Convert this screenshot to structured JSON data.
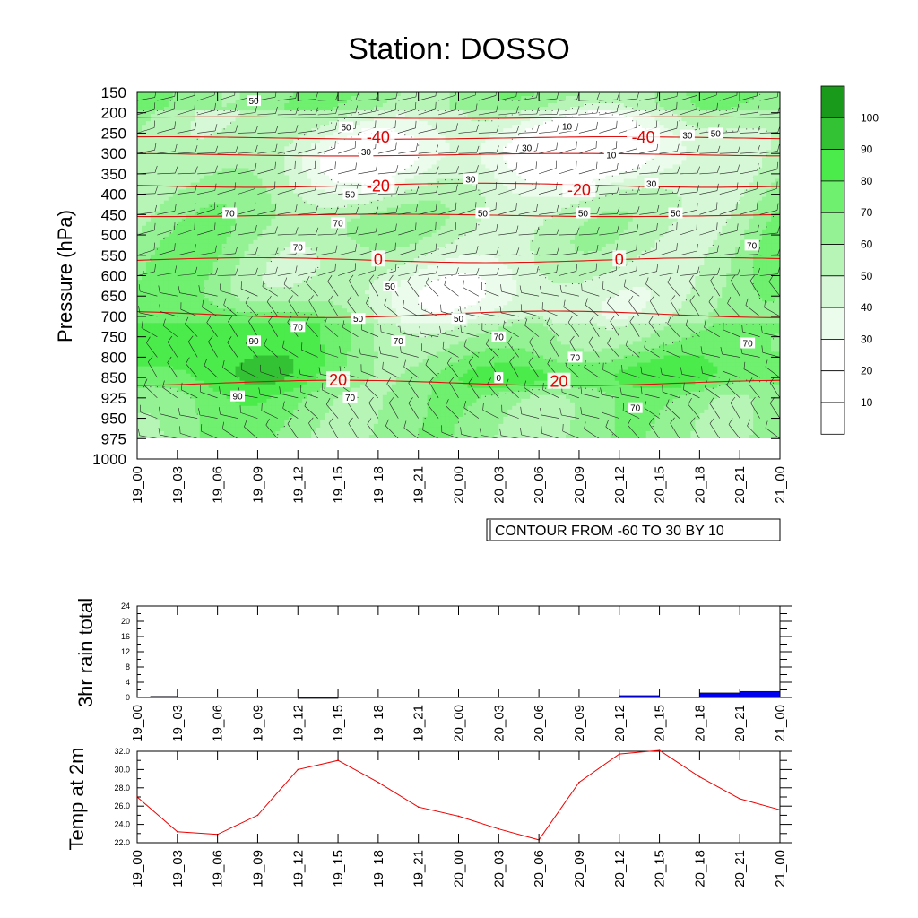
{
  "title": "Station: DOSSO",
  "chart_data": [
    {
      "type": "heatmap",
      "name": "relative-humidity-cross-section",
      "ylabel": "Pressure (hPa)",
      "y_ticks": [
        "150",
        "200",
        "250",
        "300",
        "350",
        "400",
        "450",
        "500",
        "550",
        "600",
        "650",
        "700",
        "750",
        "800",
        "850",
        "925",
        "950",
        "975",
        "1000"
      ],
      "x_ticks": [
        "19_00",
        "19_03",
        "19_06",
        "19_09",
        "19_12",
        "19_15",
        "19_18",
        "19_21",
        "20_00",
        "20_03",
        "20_06",
        "20_09",
        "20_12",
        "20_15",
        "20_18",
        "20_21",
        "21_00"
      ],
      "colorbar": {
        "levels": [
          "100",
          "90",
          "80",
          "70",
          "60",
          "50",
          "40",
          "30",
          "20",
          "10"
        ],
        "colors": [
          "#1a9a1a",
          "#33c233",
          "#4aeb4a",
          "#6ff06f",
          "#94f294",
          "#b6f5b6",
          "#d6f8d6",
          "#ecfcec",
          "#ffffff",
          "#ffffff",
          "#ffffff"
        ]
      },
      "rh_contour_labels": [
        {
          "v": "50",
          "t": 2.9,
          "p": 170
        },
        {
          "v": "50",
          "t": 5.2,
          "p": 235
        },
        {
          "v": "10",
          "t": 10.7,
          "p": 232
        },
        {
          "v": "30",
          "t": 13.7,
          "p": 255
        },
        {
          "v": "50",
          "t": 14.4,
          "p": 250
        },
        {
          "v": "30",
          "t": 5.7,
          "p": 295
        },
        {
          "v": "30",
          "t": 9.7,
          "p": 285
        },
        {
          "v": "10",
          "t": 11.8,
          "p": 303
        },
        {
          "v": "30",
          "t": 8.3,
          "p": 362
        },
        {
          "v": "30",
          "t": 12.8,
          "p": 373
        },
        {
          "v": "50",
          "t": 5.3,
          "p": 400
        },
        {
          "v": "70",
          "t": 2.3,
          "p": 446
        },
        {
          "v": "70",
          "t": 5.0,
          "p": 470
        },
        {
          "v": "50",
          "t": 8.6,
          "p": 446
        },
        {
          "v": "50",
          "t": 11.1,
          "p": 446
        },
        {
          "v": "50",
          "t": 13.4,
          "p": 446
        },
        {
          "v": "70",
          "t": 4.0,
          "p": 530
        },
        {
          "v": "70",
          "t": 15.3,
          "p": 525
        },
        {
          "v": "50",
          "t": 6.3,
          "p": 625
        },
        {
          "v": "50",
          "t": 5.5,
          "p": 705
        },
        {
          "v": "50",
          "t": 8.0,
          "p": 705
        },
        {
          "v": "70",
          "t": 4.0,
          "p": 725
        },
        {
          "v": "90",
          "t": 2.9,
          "p": 760
        },
        {
          "v": "70",
          "t": 6.5,
          "p": 760
        },
        {
          "v": "70",
          "t": 9.0,
          "p": 750
        },
        {
          "v": "70",
          "t": 15.2,
          "p": 765
        },
        {
          "v": "70",
          "t": 10.9,
          "p": 800
        },
        {
          "v": "0",
          "t": 9.0,
          "p": 850
        },
        {
          "v": "90",
          "t": 2.5,
          "p": 918
        },
        {
          "v": "70",
          "t": 5.3,
          "p": 922
        },
        {
          "v": "70",
          "t": 12.4,
          "p": 937
        }
      ],
      "temperature_contour_labels": [
        {
          "v": "-40",
          "t": 6.0,
          "p": 260
        },
        {
          "v": "-40",
          "t": 12.6,
          "p": 260
        },
        {
          "v": "-20",
          "t": 6.0,
          "p": 380
        },
        {
          "v": "-20",
          "t": 11.0,
          "p": 390
        },
        {
          "v": "0",
          "t": 6.0,
          "p": 560
        },
        {
          "v": "0",
          "t": 12.0,
          "p": 560
        },
        {
          "v": "20",
          "t": 5.0,
          "p": 860
        },
        {
          "v": "20",
          "t": 10.5,
          "p": 865
        }
      ],
      "info_box": "CONTOUR FROM -60 TO 30 BY 10"
    },
    {
      "type": "bar",
      "name": "rain",
      "ylabel": "3hr rain total",
      "y_ticks": [
        "0",
        "4",
        "8",
        "12",
        "16",
        "20",
        "24"
      ],
      "ylim": [
        0,
        24
      ],
      "x_ticks": [
        "19_00",
        "19_03",
        "19_06",
        "19_09",
        "19_12",
        "19_15",
        "19_18",
        "19_21",
        "20_00",
        "20_03",
        "20_06",
        "20_09",
        "20_12",
        "20_15",
        "20_18",
        "20_21",
        "21_00"
      ],
      "bars": [
        {
          "start": "19_01",
          "end": "19_03",
          "value": 0.3
        },
        {
          "start": "19_12",
          "end": "19_15",
          "value": 0.1
        },
        {
          "start": "20_12",
          "end": "20_15",
          "value": 0.5
        },
        {
          "start": "20_18",
          "end": "20_21",
          "value": 1.2
        },
        {
          "start": "20_21",
          "end": "21_00",
          "value": 1.6
        }
      ],
      "bar_color": "#0000ee"
    },
    {
      "type": "line",
      "name": "temp",
      "ylabel": "Temp at 2m",
      "y_ticks": [
        "22.0",
        "24.0",
        "26.0",
        "28.0",
        "30.0",
        "32.0"
      ],
      "ylim": [
        22,
        32
      ],
      "x_ticks": [
        "19_00",
        "19_03",
        "19_06",
        "19_09",
        "19_12",
        "19_15",
        "19_18",
        "19_21",
        "20_00",
        "20_03",
        "20_06",
        "20_09",
        "20_12",
        "20_15",
        "20_18",
        "20_21",
        "21_00"
      ],
      "x": [
        "19_00",
        "19_03",
        "19_06",
        "19_09",
        "19_12",
        "19_15",
        "19_18",
        "19_21",
        "20_00",
        "20_03",
        "20_06",
        "20_09",
        "20_12",
        "20_15",
        "20_18",
        "20_21",
        "21_00"
      ],
      "values": [
        27.0,
        23.2,
        22.9,
        25.0,
        30.0,
        31.0,
        28.6,
        25.9,
        24.9,
        23.5,
        22.3,
        28.6,
        31.7,
        32.1,
        29.2,
        26.8,
        25.6
      ],
      "line_color": "#ee0000"
    }
  ]
}
